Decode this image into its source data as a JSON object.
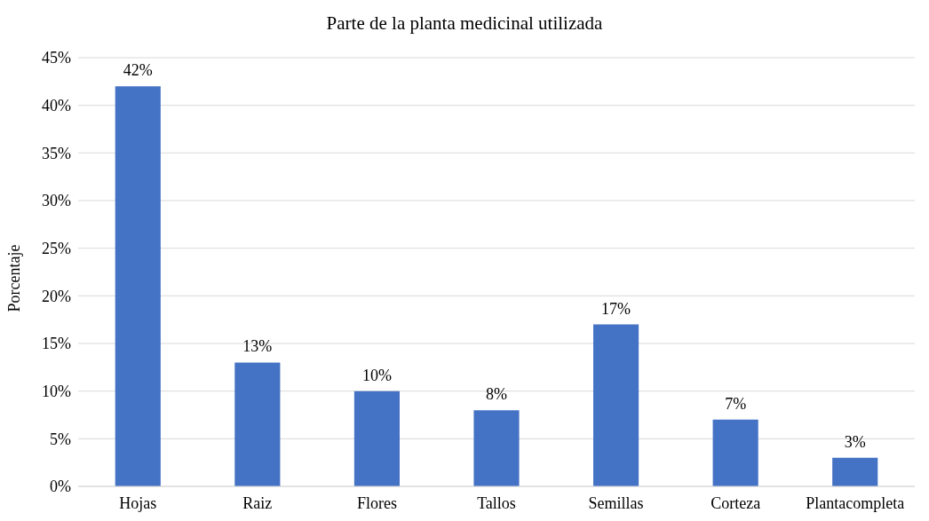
{
  "chart_data": {
    "type": "bar",
    "title": "Parte de la planta medicinal utilizada",
    "ylabel": "Porcentaje",
    "categories": [
      "Hojas",
      "Raiz",
      "Flores",
      "Tallos",
      "Semillas",
      "Corteza",
      "Plantacompleta"
    ],
    "values": [
      42,
      13,
      10,
      8,
      17,
      7,
      3
    ],
    "value_labels": [
      "42%",
      "13%",
      "10%",
      "8%",
      "17%",
      "7%",
      "3%"
    ],
    "color": "#4472c4",
    "ylim": [
      0,
      45
    ],
    "yticks": [
      {
        "value": 0,
        "label": "0%"
      },
      {
        "value": 5,
        "label": "5%"
      },
      {
        "value": 10,
        "label": "10%"
      },
      {
        "value": 15,
        "label": "15%"
      },
      {
        "value": 20,
        "label": "20%"
      },
      {
        "value": 25,
        "label": "25%"
      },
      {
        "value": 30,
        "label": "30%"
      },
      {
        "value": 35,
        "label": "35%"
      },
      {
        "value": 40,
        "label": "40%"
      },
      {
        "value": 45,
        "label": "45%"
      }
    ],
    "grid": "y",
    "legend": false
  }
}
